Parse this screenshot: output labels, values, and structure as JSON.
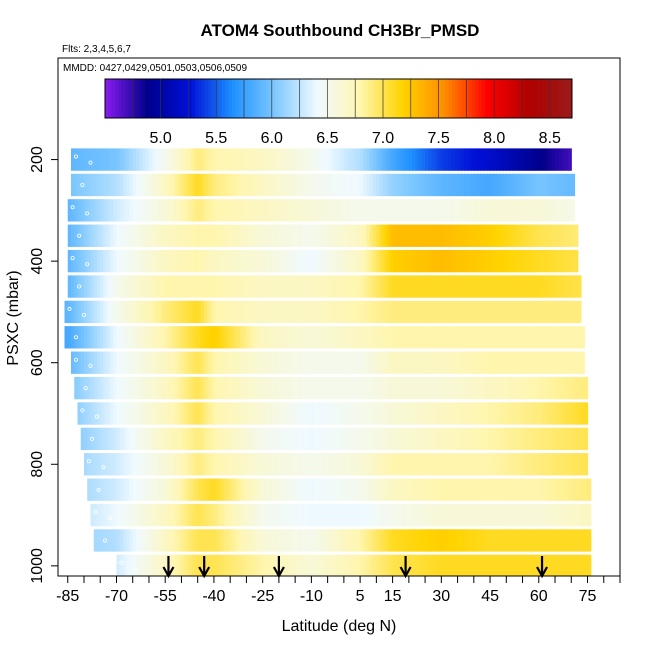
{
  "chart_data": {
    "type": "heatmap",
    "title": "ATOM4 Southbound CH3Br_PMSD",
    "flights_label": "Flts: 2,3,4,5,6,7",
    "dates_label": "MMDD: 0427,0429,0501,0503,0506,0509",
    "xlabel": "Latitude (deg N)",
    "ylabel": "PSXC (mbar)",
    "xlim": [
      -88,
      85
    ],
    "ylim": [
      1020,
      0
    ],
    "x_ticks": [
      -85,
      -70,
      -55,
      -40,
      -25,
      -10,
      5,
      15,
      30,
      45,
      60,
      75
    ],
    "y_ticks": [
      200,
      400,
      600,
      800,
      1000
    ],
    "colorbar": {
      "min": 4.5,
      "max": 8.7,
      "ticks": [
        5.0,
        5.5,
        6.0,
        6.5,
        7.0,
        7.5,
        8.0,
        8.5
      ],
      "tick_labels": [
        "5.0",
        "5.5",
        "6.0",
        "6.5",
        "7.0",
        "7.5",
        "8.0",
        "8.5"
      ],
      "colors": [
        "#8a1cf0",
        "#00008a",
        "#0010d8",
        "#1e90ff",
        "#7ec8ff",
        "#f0faff",
        "#fff6b0",
        "#ffd400",
        "#ff8c00",
        "#ff0000",
        "#b00000",
        "#9b1b1b"
      ]
    },
    "arrows_latitude": [
      -54,
      -43,
      -20,
      19,
      61
    ],
    "pressure_levels": [
      200,
      250,
      300,
      350,
      400,
      450,
      500,
      550,
      600,
      650,
      700,
      750,
      800,
      850,
      900,
      950,
      1000
    ],
    "level_start_lat": [
      -84,
      -84,
      -85,
      -85,
      -85,
      -85,
      -86,
      -86,
      -84,
      -83,
      -82,
      -81,
      -80,
      -79,
      -78,
      -77,
      -70
    ],
    "level_end_lat": [
      70,
      71,
      71,
      72,
      72,
      73,
      73,
      74,
      74,
      75,
      75,
      75,
      75,
      76,
      76,
      76,
      76
    ],
    "lat_nodes": [
      -85,
      -70,
      -55,
      -45,
      -40,
      -25,
      -10,
      5,
      15,
      30,
      45,
      60,
      75
    ],
    "values": [
      [
        5.9,
        6.0,
        6.5,
        6.9,
        6.8,
        6.7,
        6.5,
        6.2,
        5.8,
        5.4,
        5.2,
        4.9,
        4.6
      ],
      [
        6.0,
        6.2,
        6.7,
        7.1,
        6.9,
        6.7,
        6.5,
        6.4,
        6.1,
        5.9,
        5.8,
        6.0,
        5.9
      ],
      [
        5.9,
        6.3,
        6.6,
        6.9,
        6.8,
        6.7,
        6.6,
        6.5,
        6.5,
        6.5,
        6.6,
        6.6,
        6.5
      ],
      [
        5.9,
        6.4,
        6.7,
        6.8,
        6.8,
        6.6,
        6.5,
        6.7,
        7.3,
        7.3,
        7.2,
        7.0,
        6.9
      ],
      [
        5.9,
        6.4,
        6.7,
        6.8,
        6.7,
        6.6,
        6.4,
        6.7,
        7.2,
        7.3,
        7.2,
        7.1,
        7.0
      ],
      [
        5.9,
        6.5,
        6.8,
        6.8,
        6.8,
        6.7,
        6.7,
        6.8,
        7.1,
        7.1,
        7.1,
        7.1,
        7.0
      ],
      [
        5.9,
        6.5,
        6.9,
        7.1,
        6.8,
        6.7,
        6.7,
        6.8,
        6.9,
        6.9,
        6.9,
        6.9,
        6.9
      ],
      [
        5.8,
        6.4,
        6.8,
        7.1,
        7.2,
        6.7,
        6.6,
        6.7,
        6.8,
        6.8,
        6.8,
        6.8,
        6.8
      ],
      [
        5.9,
        6.4,
        6.7,
        7.0,
        6.8,
        6.6,
        6.5,
        6.5,
        6.7,
        6.7,
        6.8,
        6.8,
        6.8
      ],
      [
        6.0,
        6.4,
        6.7,
        7.0,
        6.8,
        6.6,
        6.5,
        6.5,
        6.6,
        6.6,
        6.7,
        6.8,
        6.9
      ],
      [
        6.0,
        6.4,
        6.7,
        7.0,
        6.8,
        6.6,
        6.4,
        6.5,
        6.6,
        6.7,
        6.8,
        6.9,
        7.1
      ],
      [
        6.0,
        6.3,
        6.7,
        6.9,
        6.8,
        6.5,
        6.4,
        6.5,
        6.6,
        6.7,
        6.8,
        6.9,
        7.0
      ],
      [
        6.1,
        6.3,
        6.6,
        6.9,
        6.8,
        6.6,
        6.5,
        6.6,
        6.8,
        6.8,
        6.8,
        6.9,
        7.0
      ],
      [
        6.1,
        6.3,
        6.6,
        7.0,
        7.1,
        6.6,
        6.4,
        6.5,
        6.7,
        6.8,
        6.8,
        6.8,
        6.9
      ],
      [
        6.2,
        6.4,
        6.7,
        7.0,
        6.9,
        6.5,
        6.4,
        6.4,
        6.5,
        6.6,
        6.6,
        6.6,
        6.7
      ],
      [
        6.1,
        6.2,
        6.7,
        7.0,
        7.0,
        6.6,
        6.5,
        6.8,
        7.1,
        7.2,
        7.1,
        7.1,
        7.1
      ],
      [
        6.2,
        6.3,
        6.7,
        7.0,
        7.0,
        6.8,
        6.6,
        6.8,
        7.0,
        7.1,
        7.1,
        7.1,
        7.1
      ]
    ]
  }
}
